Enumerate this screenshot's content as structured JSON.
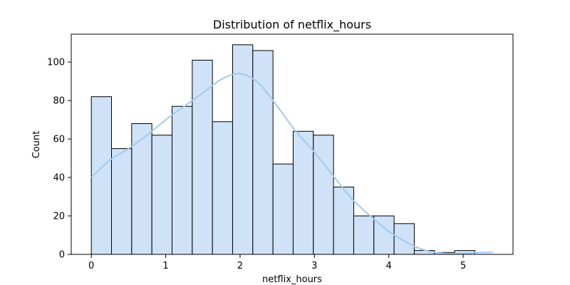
{
  "chart_data": {
    "type": "bar",
    "title": "Distribution of netflix_hours",
    "xlabel": "netflix_hours",
    "ylabel": "Count",
    "bins": {
      "start": 0,
      "width": 0.2714,
      "counts": [
        82,
        55,
        68,
        62,
        77,
        101,
        69,
        109,
        106,
        47,
        64,
        62,
        35,
        20,
        20,
        16,
        2,
        1,
        2
      ]
    },
    "kde": {
      "x": [
        0,
        0.25,
        0.5,
        0.75,
        1.0,
        1.25,
        1.5,
        1.75,
        2.0,
        2.25,
        2.5,
        2.75,
        3.0,
        3.25,
        3.5,
        3.75,
        4.0,
        4.25,
        4.5,
        4.75,
        5.0,
        5.25,
        5.4
      ],
      "y": [
        40,
        49,
        55,
        62,
        70,
        77,
        84,
        91,
        94,
        89,
        77,
        64,
        53,
        41,
        29,
        20,
        12,
        6,
        2,
        0.5,
        0.5,
        1,
        1
      ]
    },
    "xlim": [
      -0.27,
      5.67
    ],
    "ylim": [
      0,
      114.5
    ],
    "xticks": [
      0,
      1,
      2,
      3,
      4,
      5
    ],
    "yticks": [
      0,
      20,
      40,
      60,
      80,
      100
    ],
    "grid": false,
    "colors": {
      "bar_fill": "#cfe2f7",
      "bar_edge": "#000000",
      "kde_line": "#a1c9f4",
      "axis": "#000000"
    }
  }
}
